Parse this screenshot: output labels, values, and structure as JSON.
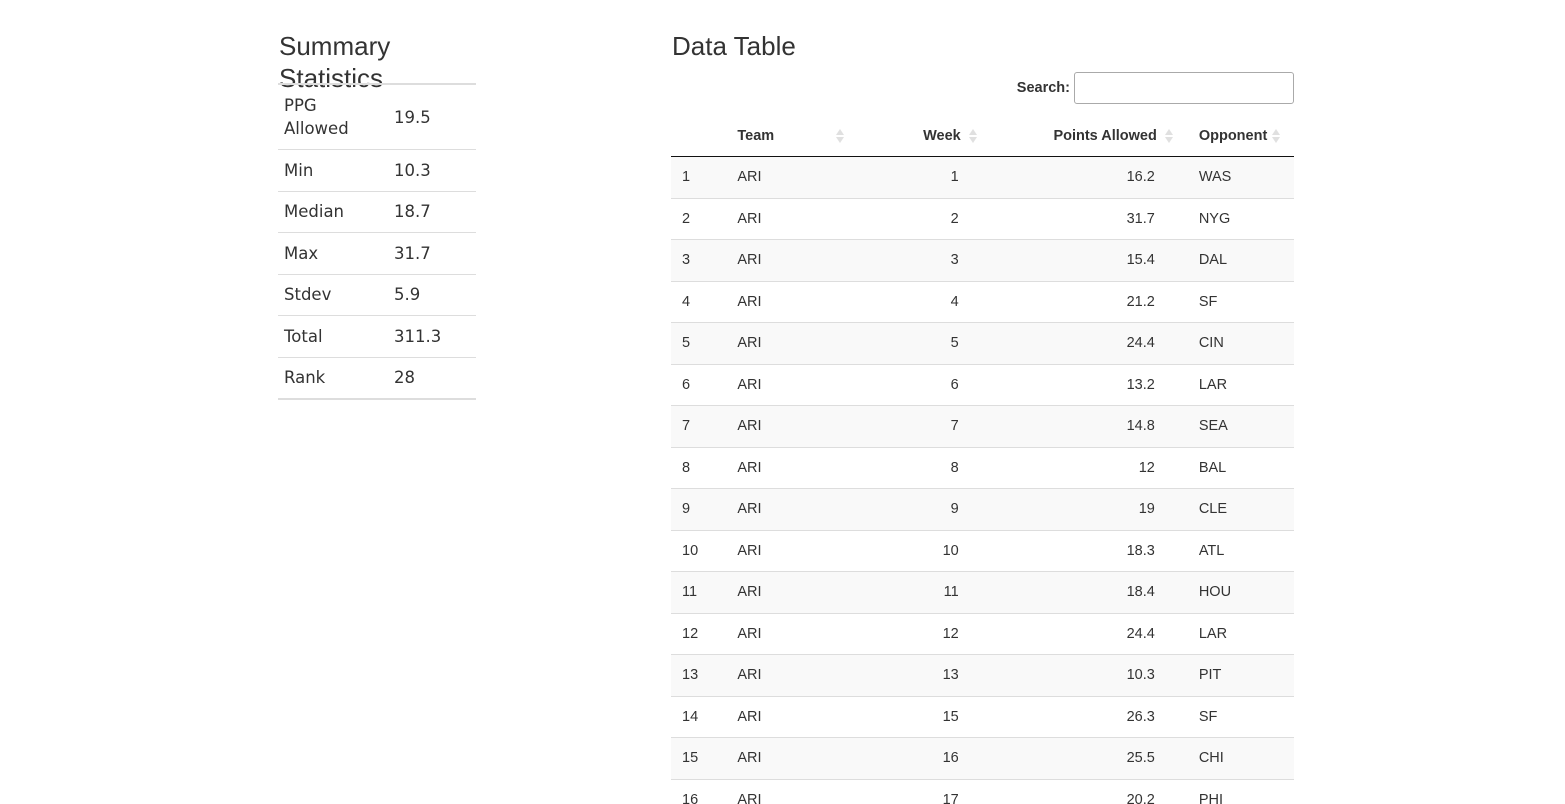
{
  "summary": {
    "title": "Summary Statistics",
    "rows": [
      {
        "label": "PPG Allowed",
        "value": "19.5"
      },
      {
        "label": "Min",
        "value": "10.3"
      },
      {
        "label": "Median",
        "value": "18.7"
      },
      {
        "label": "Max",
        "value": "31.7"
      },
      {
        "label": "Stdev",
        "value": "5.9"
      },
      {
        "label": "Total",
        "value": "311.3"
      },
      {
        "label": "Rank",
        "value": "28"
      }
    ]
  },
  "data_table": {
    "title": "Data Table",
    "search": {
      "label": "Search:",
      "value": "",
      "placeholder": ""
    },
    "columns": [
      "",
      "Team",
      "Week",
      "Points Allowed",
      "Opponent"
    ],
    "rows": [
      [
        "1",
        "ARI",
        "1",
        "16.2",
        "WAS"
      ],
      [
        "2",
        "ARI",
        "2",
        "31.7",
        "NYG"
      ],
      [
        "3",
        "ARI",
        "3",
        "15.4",
        "DAL"
      ],
      [
        "4",
        "ARI",
        "4",
        "21.2",
        "SF"
      ],
      [
        "5",
        "ARI",
        "5",
        "24.4",
        "CIN"
      ],
      [
        "6",
        "ARI",
        "6",
        "13.2",
        "LAR"
      ],
      [
        "7",
        "ARI",
        "7",
        "14.8",
        "SEA"
      ],
      [
        "8",
        "ARI",
        "8",
        "12",
        "BAL"
      ],
      [
        "9",
        "ARI",
        "9",
        "19",
        "CLE"
      ],
      [
        "10",
        "ARI",
        "10",
        "18.3",
        "ATL"
      ],
      [
        "11",
        "ARI",
        "11",
        "18.4",
        "HOU"
      ],
      [
        "12",
        "ARI",
        "12",
        "24.4",
        "LAR"
      ],
      [
        "13",
        "ARI",
        "13",
        "10.3",
        "PIT"
      ],
      [
        "14",
        "ARI",
        "15",
        "26.3",
        "SF"
      ],
      [
        "15",
        "ARI",
        "16",
        "25.5",
        "CHI"
      ],
      [
        "16",
        "ARI",
        "17",
        "20.2",
        "PHI"
      ]
    ]
  }
}
